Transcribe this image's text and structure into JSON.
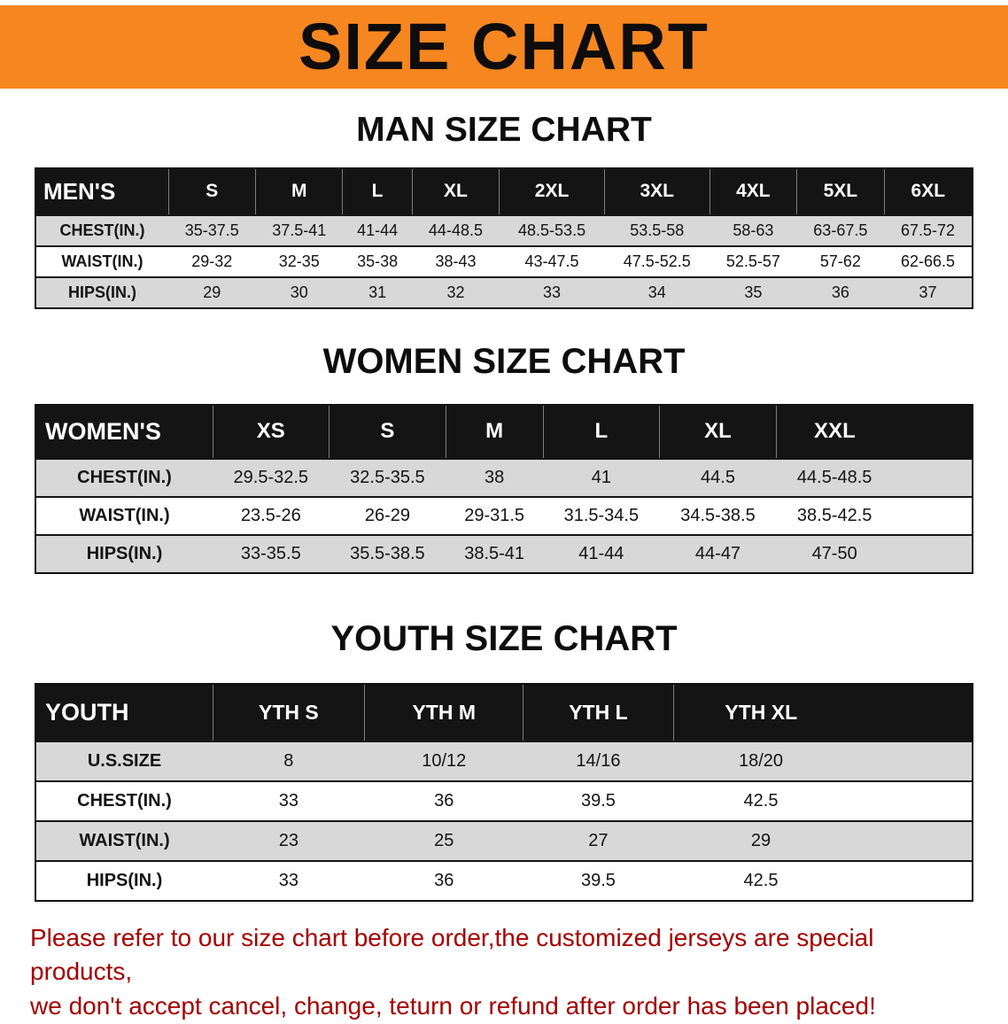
{
  "banner": {
    "title": "SIZE CHART",
    "bg_color": "#f6861f"
  },
  "sections": [
    {
      "heading": "MAN SIZE CHART",
      "table": {
        "label": "MEN'S",
        "columns": [
          "S",
          "M",
          "L",
          "XL",
          "2XL",
          "3XL",
          "4XL",
          "5XL",
          "6XL"
        ],
        "rows": [
          {
            "label": "CHEST(IN.)",
            "values": [
              "35-37.5",
              "37.5-41",
              "41-44",
              "44-48.5",
              "48.5-53.5",
              "53.5-58",
              "58-63",
              "63-67.5",
              "67.5-72"
            ]
          },
          {
            "label": "WAIST(IN.)",
            "values": [
              "29-32",
              "32-35",
              "35-38",
              "38-43",
              "43-47.5",
              "47.5-52.5",
              "52.5-57",
              "57-62",
              "62-66.5"
            ]
          },
          {
            "label": "HIPS(IN.)",
            "values": [
              "29",
              "30",
              "31",
              "32",
              "33",
              "34",
              "35",
              "36",
              "37"
            ]
          }
        ]
      }
    },
    {
      "heading": "WOMEN SIZE CHART",
      "table": {
        "label": "WOMEN'S",
        "columns": [
          "XS",
          "S",
          "M",
          "L",
          "XL",
          "XXL"
        ],
        "rows": [
          {
            "label": "CHEST(IN.)",
            "values": [
              "29.5-32.5",
              "32.5-35.5",
              "38",
              "41",
              "44.5",
              "44.5-48.5"
            ]
          },
          {
            "label": "WAIST(IN.)",
            "values": [
              "23.5-26",
              "26-29",
              "29-31.5",
              "31.5-34.5",
              "34.5-38.5",
              "38.5-42.5"
            ]
          },
          {
            "label": "HIPS(IN.)",
            "values": [
              "33-35.5",
              "35.5-38.5",
              "38.5-41",
              "41-44",
              "44-47",
              "47-50"
            ]
          }
        ]
      }
    },
    {
      "heading": "YOUTH SIZE CHART",
      "table": {
        "label": "YOUTH",
        "columns": [
          "YTH S",
          "YTH M",
          "YTH L",
          "YTH XL"
        ],
        "rows": [
          {
            "label": "U.S.SIZE",
            "values": [
              "8",
              "10/12",
              "14/16",
              "18/20"
            ]
          },
          {
            "label": "CHEST(IN.)",
            "values": [
              "33",
              "36",
              "39.5",
              "42.5"
            ]
          },
          {
            "label": "WAIST(IN.)",
            "values": [
              "23",
              "25",
              "27",
              "29"
            ]
          },
          {
            "label": "HIPS(IN.)",
            "values": [
              "33",
              "36",
              "39.5",
              "42.5"
            ]
          }
        ]
      }
    }
  ],
  "disclaimer": {
    "line1": "Please refer to our size chart before order,the customized jerseys are special products,",
    "line2": "we don't accept cancel, change, teturn or refund after order has been placed!",
    "color": "#a40000"
  }
}
